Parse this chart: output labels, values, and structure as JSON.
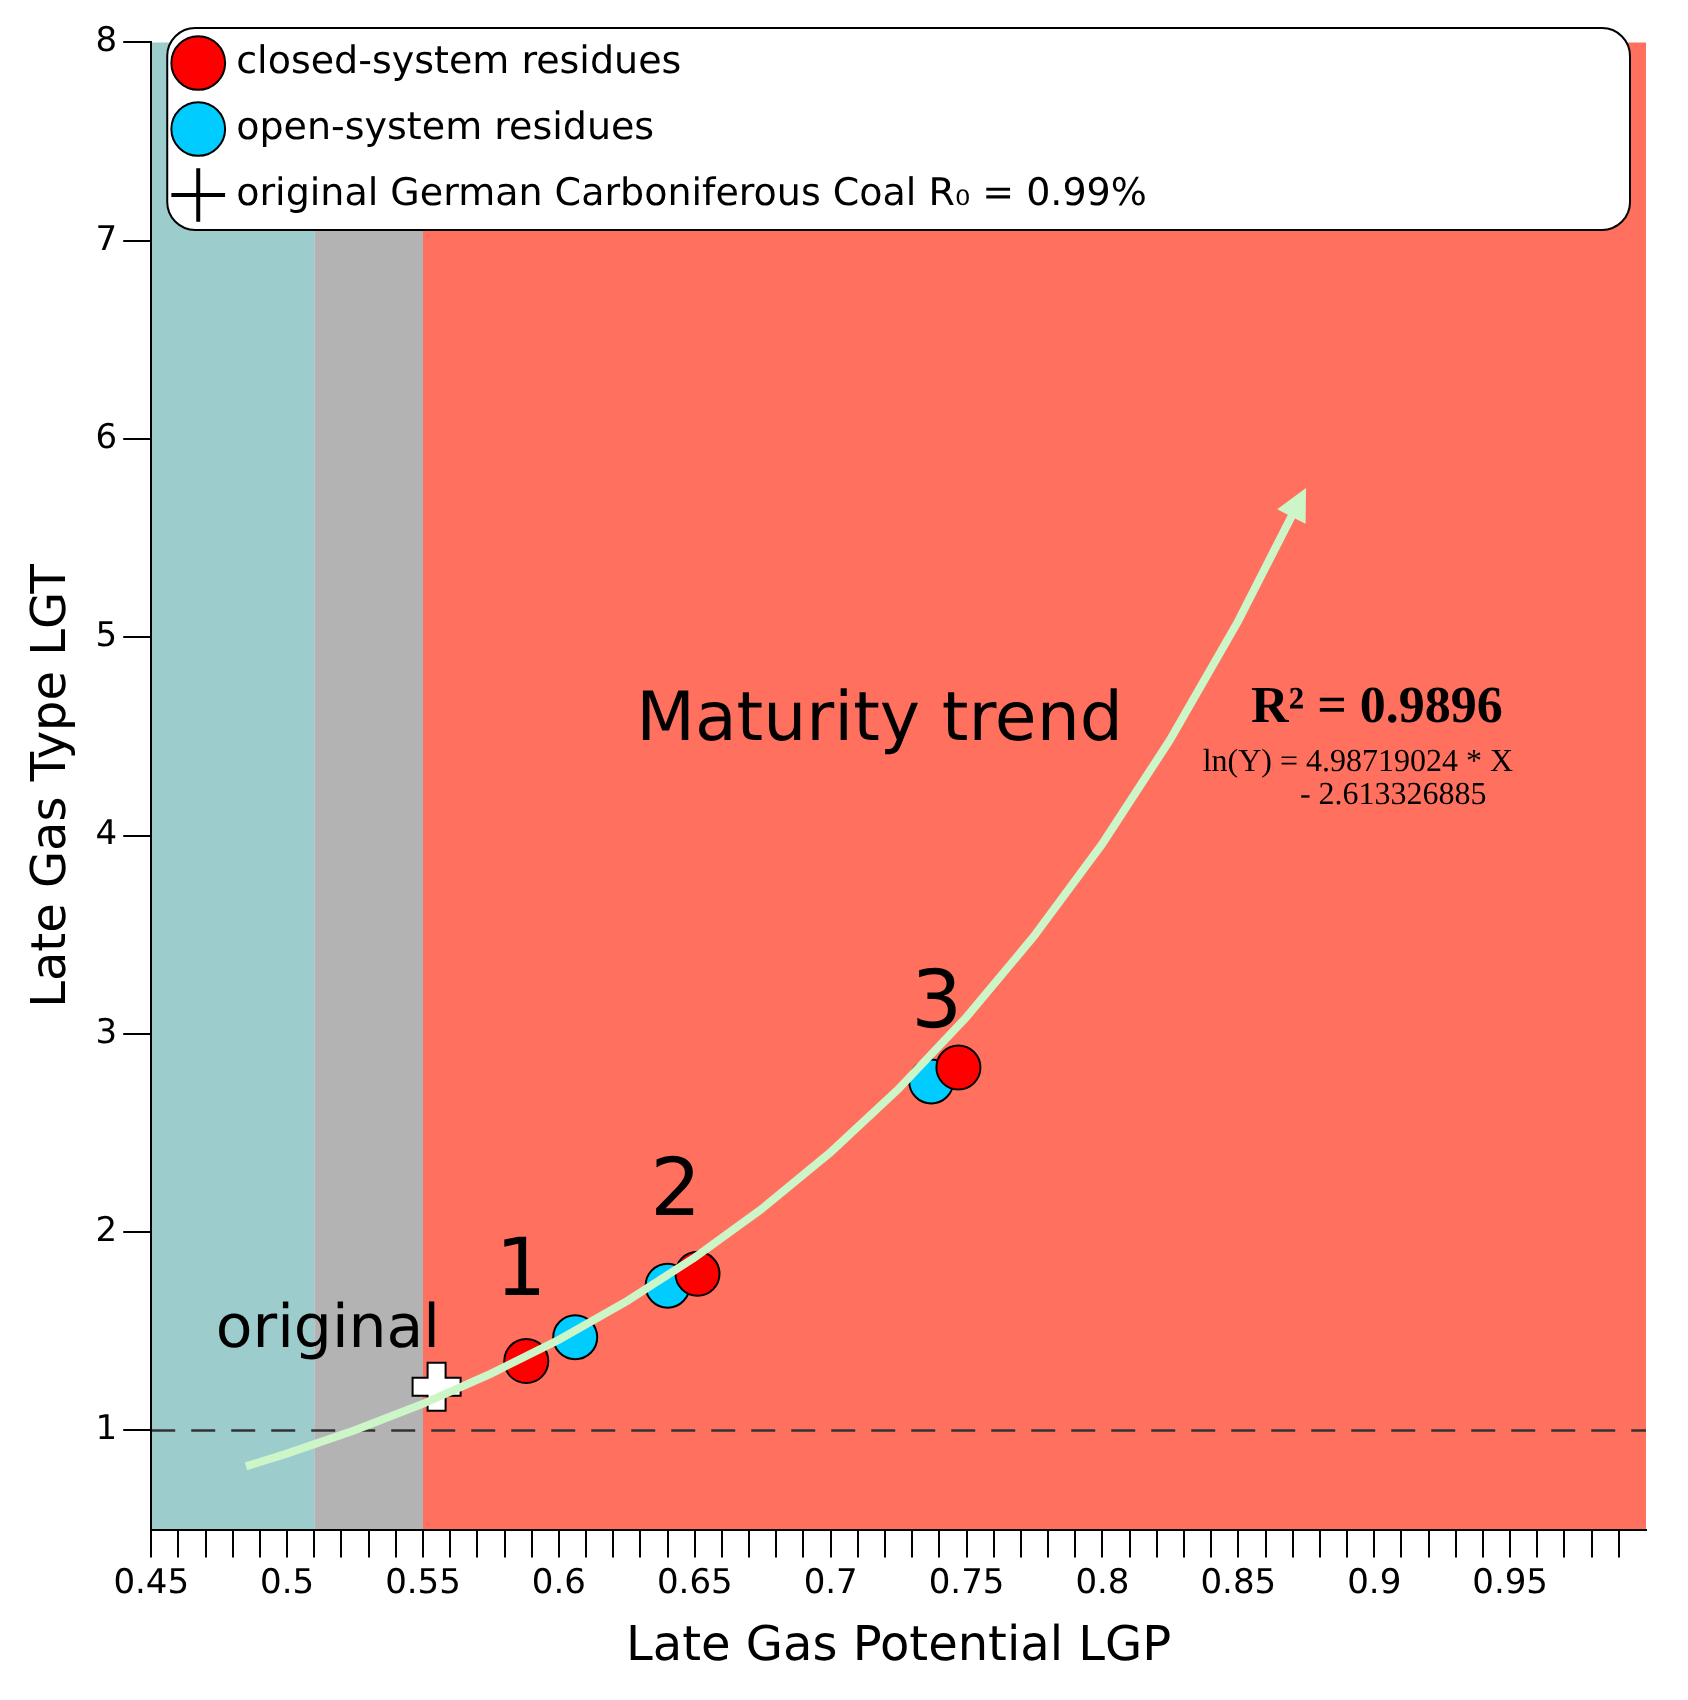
{
  "chart_data": {
    "type": "scatter",
    "xlabel": "Late Gas Potential LGP",
    "ylabel": "Late Gas Type LGT",
    "xlim": [
      0.45,
      1.0
    ],
    "ylim": [
      0.5,
      8
    ],
    "xticks": [
      0.45,
      {
        "value": 0.46,
        "label": null
      },
      {
        "value": 0.47,
        "label": null
      },
      {
        "value": 0.48,
        "label": null
      },
      {
        "value": 0.49,
        "label": null
      },
      0.5,
      {
        "value": 0.51,
        "label": null
      },
      {
        "value": 0.52,
        "label": null
      },
      {
        "value": 0.53,
        "label": null
      },
      {
        "value": 0.54,
        "label": null
      },
      0.55,
      {
        "value": 0.56,
        "label": null
      },
      {
        "value": 0.57,
        "label": null
      },
      {
        "value": 0.58,
        "label": null
      },
      {
        "value": 0.59,
        "label": null
      },
      0.6,
      {
        "value": 0.61,
        "label": null
      },
      {
        "value": 0.62,
        "label": null
      },
      {
        "value": 0.63,
        "label": null
      },
      {
        "value": 0.64,
        "label": null
      },
      0.65,
      {
        "value": 0.66,
        "label": null
      },
      {
        "value": 0.67,
        "label": null
      },
      {
        "value": 0.68,
        "label": null
      },
      {
        "value": 0.69,
        "label": null
      },
      0.7,
      {
        "value": 0.71,
        "label": null
      },
      {
        "value": 0.72,
        "label": null
      },
      {
        "value": 0.73,
        "label": null
      },
      {
        "value": 0.74,
        "label": null
      },
      0.75,
      {
        "value": 0.76,
        "label": null
      },
      {
        "value": 0.77,
        "label": null
      },
      {
        "value": 0.78,
        "label": null
      },
      {
        "value": 0.79,
        "label": null
      },
      0.8,
      {
        "value": 0.81,
        "label": null
      },
      {
        "value": 0.82,
        "label": null
      },
      {
        "value": 0.83,
        "label": null
      },
      {
        "value": 0.84,
        "label": null
      },
      0.85,
      {
        "value": 0.86,
        "label": null
      },
      {
        "value": 0.87,
        "label": null
      },
      {
        "value": 0.88,
        "label": null
      },
      {
        "value": 0.89,
        "label": null
      },
      0.9,
      {
        "value": 0.91,
        "label": null
      },
      {
        "value": 0.92,
        "label": null
      },
      {
        "value": 0.93,
        "label": null
      },
      {
        "value": 0.94,
        "label": null
      },
      0.95,
      {
        "value": 0.96,
        "label": null
      },
      {
        "value": 0.97,
        "label": null
      },
      {
        "value": 0.98,
        "label": null
      },
      {
        "value": 0.99,
        "label": null
      }
    ],
    "yticks": [
      1,
      2,
      3,
      4,
      5,
      6,
      7,
      8
    ],
    "grid": false,
    "legend": "top",
    "bands": [
      {
        "axis": "x",
        "from": 0.45,
        "to": 0.51,
        "color": "#9dcccd"
      },
      {
        "axis": "x",
        "from": 0.51,
        "to": 0.55,
        "color": "#b3b3b3"
      },
      {
        "axis": "x",
        "from": 0.55,
        "to": 1.0,
        "color": "#ff715e"
      }
    ],
    "ref_lines": [
      {
        "axis": "y",
        "value": 1,
        "color": "#333333",
        "line_style": "dashed"
      }
    ],
    "series": [
      {
        "name": "closed-system residues",
        "color": "#ff0000",
        "marker": "circle",
        "x": [
          0.588,
          0.651,
          0.747
        ],
        "values": [
          1.35,
          1.79,
          2.83
        ]
      },
      {
        "name": "open-system residues",
        "color": "#00ccff",
        "marker": "circle",
        "x": [
          0.606,
          0.64,
          0.737
        ],
        "values": [
          1.47,
          1.73,
          2.76
        ]
      },
      {
        "name": "original German Carboniferous Coal R₀ = 0.99%",
        "color": "#ffffff",
        "marker": "cross",
        "x": [
          0.555
        ],
        "values": [
          1.22
        ]
      }
    ],
    "annotations": [
      "original",
      "1",
      "2",
      "3",
      "Maturity trend",
      "R² = 0.9896",
      "ln(Y) = 4.98719024 * X",
      "- 2.613326885"
    ]
  }
}
